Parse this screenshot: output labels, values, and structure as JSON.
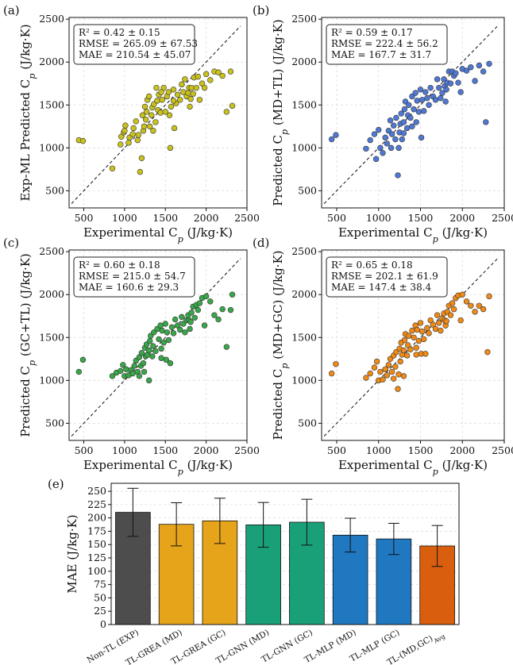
{
  "chart_data": [
    {
      "panel": "(a)",
      "type": "scatter",
      "xlabel": "Experimental C",
      "xlabel_sub": "p",
      "xlabel_unit": " (J/kg·K)",
      "ylabel": "Exp-ML Predicted C",
      "ylabel_sub": "p",
      "ylabel_unit": " (J/kg·K)",
      "xlim": [
        320,
        2500
      ],
      "ylim": [
        300,
        2520
      ],
      "xticks": [
        500,
        1000,
        1500,
        2000,
        2500
      ],
      "yticks": [
        500,
        1000,
        1500,
        2000,
        2500
      ],
      "color": "#c9c21d",
      "stats": [
        "R² = 0.42 ± 0.15",
        "RMSE = 265.09 ± 67.53",
        "MAE = 210.54 ± 45.07"
      ],
      "diagonal": [
        350,
        2420
      ],
      "points": [
        [
          440,
          1090
        ],
        [
          490,
          1080
        ],
        [
          850,
          760
        ],
        [
          950,
          1040
        ],
        [
          960,
          1130
        ],
        [
          990,
          1180
        ],
        [
          1000,
          1200
        ],
        [
          1010,
          1260
        ],
        [
          1050,
          1060
        ],
        [
          1060,
          1120
        ],
        [
          1100,
          1160
        ],
        [
          1110,
          1230
        ],
        [
          1140,
          1310
        ],
        [
          1160,
          1090
        ],
        [
          1170,
          1150
        ],
        [
          1190,
          720
        ],
        [
          1210,
          880
        ],
        [
          1220,
          1380
        ],
        [
          1230,
          1200
        ],
        [
          1240,
          1250
        ],
        [
          1250,
          1480
        ],
        [
          1260,
          1330
        ],
        [
          1270,
          1420
        ],
        [
          1280,
          1560
        ],
        [
          1300,
          1600
        ],
        [
          1310,
          1250
        ],
        [
          1330,
          1380
        ],
        [
          1340,
          1470
        ],
        [
          1350,
          1200
        ],
        [
          1360,
          1510
        ],
        [
          1380,
          1300
        ],
        [
          1400,
          1550
        ],
        [
          1410,
          1440
        ],
        [
          1420,
          1620
        ],
        [
          1440,
          1410
        ],
        [
          1460,
          1560
        ],
        [
          1480,
          1700
        ],
        [
          1500,
          1420
        ],
        [
          1520,
          1600
        ],
        [
          1540,
          1650
        ],
        [
          1560,
          1000
        ],
        [
          1570,
          1480
        ],
        [
          1600,
          1680
        ],
        [
          1610,
          1230
        ],
        [
          1630,
          1520
        ],
        [
          1650,
          1620
        ],
        [
          1680,
          1560
        ],
        [
          1700,
          1740
        ],
        [
          1720,
          1650
        ],
        [
          1740,
          1800
        ],
        [
          1760,
          1600
        ],
        [
          1780,
          1640
        ],
        [
          1790,
          1700
        ],
        [
          1800,
          1480
        ],
        [
          1810,
          1570
        ],
        [
          1820,
          1700
        ],
        [
          1840,
          1630
        ],
        [
          1850,
          1820
        ],
        [
          1880,
          1700
        ],
        [
          1900,
          1830
        ],
        [
          1920,
          1560
        ],
        [
          1950,
          1750
        ],
        [
          1980,
          1700
        ],
        [
          2000,
          1860
        ],
        [
          2050,
          1790
        ],
        [
          2100,
          1890
        ],
        [
          2150,
          1880
        ],
        [
          2200,
          1840
        ],
        [
          2250,
          1420
        ],
        [
          2300,
          1890
        ],
        [
          2320,
          1490
        ],
        [
          1550,
          1380
        ],
        [
          1450,
          1650
        ],
        [
          1390,
          1700
        ],
        [
          1600,
          1550
        ]
      ]
    },
    {
      "panel": "(b)",
      "type": "scatter",
      "xlabel": "Experimental C",
      "xlabel_sub": "p",
      "xlabel_unit": " (J/kg·K)",
      "ylabel": "Predicted C",
      "ylabel_sub": "p",
      "ylabel_unit": " (MD+TL) (J/kg·K)",
      "xlim": [
        320,
        2500
      ],
      "ylim": [
        300,
        2520
      ],
      "xticks": [
        500,
        1000,
        1500,
        2000,
        2500
      ],
      "yticks": [
        500,
        1000,
        1500,
        2000,
        2500
      ],
      "color": "#4f78d4",
      "stats": [
        "R² = 0.59 ± 0.17",
        "RMSE = 222.4 ± 56.2",
        "MAE = 167.7 ± 31.7"
      ],
      "diagonal": [
        350,
        2420
      ],
      "points": [
        [
          440,
          1100
        ],
        [
          490,
          1150
        ],
        [
          850,
          990
        ],
        [
          900,
          1090
        ],
        [
          950,
          1160
        ],
        [
          970,
          870
        ],
        [
          1000,
          1210
        ],
        [
          1020,
          1000
        ],
        [
          1050,
          940
        ],
        [
          1080,
          1120
        ],
        [
          1100,
          1050
        ],
        [
          1120,
          1200
        ],
        [
          1140,
          1320
        ],
        [
          1160,
          1160
        ],
        [
          1180,
          1260
        ],
        [
          1200,
          1100
        ],
        [
          1210,
          1350
        ],
        [
          1230,
          680
        ],
        [
          1240,
          1000
        ],
        [
          1250,
          1180
        ],
        [
          1260,
          1280
        ],
        [
          1270,
          1400
        ],
        [
          1280,
          1100
        ],
        [
          1300,
          1300
        ],
        [
          1310,
          1450
        ],
        [
          1320,
          1540
        ],
        [
          1340,
          1230
        ],
        [
          1350,
          1380
        ],
        [
          1360,
          1500
        ],
        [
          1380,
          1350
        ],
        [
          1400,
          1600
        ],
        [
          1420,
          1450
        ],
        [
          1440,
          1640
        ],
        [
          1450,
          1300
        ],
        [
          1460,
          1550
        ],
        [
          1480,
          1420
        ],
        [
          1500,
          1680
        ],
        [
          1510,
          1120
        ],
        [
          1520,
          1560
        ],
        [
          1540,
          1430
        ],
        [
          1560,
          1650
        ],
        [
          1580,
          1580
        ],
        [
          1600,
          1500
        ],
        [
          1620,
          1700
        ],
        [
          1650,
          1600
        ],
        [
          1680,
          1560
        ],
        [
          1700,
          1800
        ],
        [
          1720,
          1700
        ],
        [
          1740,
          1580
        ],
        [
          1760,
          1640
        ],
        [
          1780,
          1800
        ],
        [
          1790,
          1720
        ],
        [
          1800,
          1540
        ],
        [
          1810,
          1680
        ],
        [
          1820,
          1760
        ],
        [
          1840,
          1890
        ],
        [
          1860,
          1750
        ],
        [
          1880,
          1890
        ],
        [
          1900,
          1840
        ],
        [
          1920,
          1870
        ],
        [
          1950,
          1760
        ],
        [
          1980,
          1650
        ],
        [
          2000,
          1920
        ],
        [
          2050,
          1900
        ],
        [
          2100,
          1940
        ],
        [
          2150,
          1780
        ],
        [
          2200,
          1960
        ],
        [
          2250,
          1890
        ],
        [
          2280,
          1300
        ],
        [
          2320,
          1980
        ],
        [
          1300,
          1170
        ],
        [
          1400,
          1250
        ],
        [
          1150,
          1000
        ]
      ]
    },
    {
      "panel": "(c)",
      "type": "scatter",
      "xlabel": "Experimental C",
      "xlabel_sub": "p",
      "xlabel_unit": " (J/kg·K)",
      "ylabel": "Predicted C",
      "ylabel_sub": "p",
      "ylabel_unit": " (GC+TL) (J/kg·K)",
      "xlim": [
        320,
        2500
      ],
      "ylim": [
        300,
        2520
      ],
      "xticks": [
        500,
        1000,
        1500,
        2000,
        2500
      ],
      "yticks": [
        500,
        1000,
        1500,
        2000,
        2500
      ],
      "color": "#3aa64a",
      "stats": [
        "R² = 0.60 ± 0.18",
        "RMSE = 215.0 ± 54.7",
        "MAE = 160.6 ± 29.3"
      ],
      "diagonal": [
        350,
        2420
      ],
      "points": [
        [
          440,
          1100
        ],
        [
          490,
          1240
        ],
        [
          850,
          1050
        ],
        [
          900,
          1090
        ],
        [
          950,
          1110
        ],
        [
          980,
          1180
        ],
        [
          1000,
          1050
        ],
        [
          1020,
          1130
        ],
        [
          1050,
          1060
        ],
        [
          1080,
          1120
        ],
        [
          1100,
          1080
        ],
        [
          1120,
          1170
        ],
        [
          1140,
          1230
        ],
        [
          1160,
          1100
        ],
        [
          1180,
          1270
        ],
        [
          1200,
          1170
        ],
        [
          1210,
          1320
        ],
        [
          1230,
          1200
        ],
        [
          1240,
          1100
        ],
        [
          1250,
          1380
        ],
        [
          1260,
          1280
        ],
        [
          1270,
          1420
        ],
        [
          1280,
          1300
        ],
        [
          1300,
          1350
        ],
        [
          1310,
          1460
        ],
        [
          1320,
          1520
        ],
        [
          1340,
          1280
        ],
        [
          1350,
          1400
        ],
        [
          1360,
          1560
        ],
        [
          1380,
          1340
        ],
        [
          1400,
          1600
        ],
        [
          1420,
          1480
        ],
        [
          1440,
          1640
        ],
        [
          1450,
          1370
        ],
        [
          1460,
          1580
        ],
        [
          1480,
          1440
        ],
        [
          1500,
          1660
        ],
        [
          1510,
          1240
        ],
        [
          1520,
          1560
        ],
        [
          1540,
          1470
        ],
        [
          1560,
          1200
        ],
        [
          1580,
          1620
        ],
        [
          1600,
          1550
        ],
        [
          1620,
          1710
        ],
        [
          1650,
          1640
        ],
        [
          1680,
          1590
        ],
        [
          1700,
          1740
        ],
        [
          1720,
          1660
        ],
        [
          1740,
          1560
        ],
        [
          1760,
          1700
        ],
        [
          1780,
          1760
        ],
        [
          1790,
          1700
        ],
        [
          1800,
          1600
        ],
        [
          1810,
          1680
        ],
        [
          1820,
          1790
        ],
        [
          1840,
          1860
        ],
        [
          1860,
          1730
        ],
        [
          1880,
          1880
        ],
        [
          1900,
          1820
        ],
        [
          1920,
          1900
        ],
        [
          1950,
          1960
        ],
        [
          1980,
          1640
        ],
        [
          2000,
          1980
        ],
        [
          2050,
          1920
        ],
        [
          2100,
          1760
        ],
        [
          2150,
          1710
        ],
        [
          2200,
          1830
        ],
        [
          2250,
          1390
        ],
        [
          2300,
          1820
        ],
        [
          2320,
          2000
        ],
        [
          1300,
          1000
        ],
        [
          1180,
          1050
        ],
        [
          1450,
          1260
        ]
      ]
    },
    {
      "panel": "(d)",
      "type": "scatter",
      "xlabel": "Experimental C",
      "xlabel_sub": "p",
      "xlabel_unit": " (J/kg·K)",
      "ylabel": "Predicted C",
      "ylabel_sub": "p",
      "ylabel_unit": " (MD+GC) (J/kg·K)",
      "xlim": [
        320,
        2500
      ],
      "ylim": [
        300,
        2520
      ],
      "xticks": [
        500,
        1000,
        1500,
        2000,
        2500
      ],
      "yticks": [
        500,
        1000,
        1500,
        2000,
        2500
      ],
      "color": "#f08a17",
      "stats": [
        "R² = 0.65 ± 0.18",
        "RMSE = 202.1 ± 61.9",
        "MAE = 147.4 ± 38.4"
      ],
      "diagonal": [
        350,
        2420
      ],
      "points": [
        [
          440,
          1080
        ],
        [
          490,
          1190
        ],
        [
          850,
          1030
        ],
        [
          900,
          1080
        ],
        [
          950,
          1150
        ],
        [
          980,
          1220
        ],
        [
          1000,
          1000
        ],
        [
          1020,
          1100
        ],
        [
          1050,
          1010
        ],
        [
          1080,
          1130
        ],
        [
          1100,
          1060
        ],
        [
          1120,
          1180
        ],
        [
          1140,
          1250
        ],
        [
          1160,
          1100
        ],
        [
          1180,
          1290
        ],
        [
          1200,
          1160
        ],
        [
          1210,
          1330
        ],
        [
          1230,
          900
        ],
        [
          1240,
          1070
        ],
        [
          1250,
          1370
        ],
        [
          1260,
          1220
        ],
        [
          1270,
          1440
        ],
        [
          1280,
          1300
        ],
        [
          1300,
          1350
        ],
        [
          1310,
          1470
        ],
        [
          1320,
          1540
        ],
        [
          1340,
          1290
        ],
        [
          1350,
          1410
        ],
        [
          1360,
          1520
        ],
        [
          1380,
          1360
        ],
        [
          1400,
          1580
        ],
        [
          1420,
          1500
        ],
        [
          1440,
          1640
        ],
        [
          1450,
          1380
        ],
        [
          1460,
          1590
        ],
        [
          1480,
          1460
        ],
        [
          1500,
          1670
        ],
        [
          1510,
          1310
        ],
        [
          1520,
          1570
        ],
        [
          1540,
          1480
        ],
        [
          1560,
          1310
        ],
        [
          1580,
          1610
        ],
        [
          1600,
          1550
        ],
        [
          1620,
          1700
        ],
        [
          1650,
          1650
        ],
        [
          1680,
          1600
        ],
        [
          1700,
          1760
        ],
        [
          1720,
          1670
        ],
        [
          1740,
          1580
        ],
        [
          1760,
          1720
        ],
        [
          1780,
          1780
        ],
        [
          1790,
          1700
        ],
        [
          1800,
          1640
        ],
        [
          1810,
          1690
        ],
        [
          1820,
          1800
        ],
        [
          1840,
          1870
        ],
        [
          1860,
          1760
        ],
        [
          1880,
          1900
        ],
        [
          1900,
          1830
        ],
        [
          1920,
          1960
        ],
        [
          1950,
          1990
        ],
        [
          1980,
          1700
        ],
        [
          2000,
          2000
        ],
        [
          2050,
          1920
        ],
        [
          2100,
          1870
        ],
        [
          2150,
          1800
        ],
        [
          2200,
          1870
        ],
        [
          2250,
          1830
        ],
        [
          2300,
          1330
        ],
        [
          2320,
          1980
        ],
        [
          1300,
          1050
        ],
        [
          1180,
          1020
        ],
        [
          1450,
          1300
        ]
      ]
    },
    {
      "panel": "(e)",
      "type": "bar",
      "ylabel": "MAE (J/kg·K)",
      "ylim": [
        0,
        265
      ],
      "yticks": [
        0,
        25,
        50,
        75,
        100,
        125,
        150,
        175,
        200,
        225,
        250
      ],
      "categories": [
        "Non-TL (EXP)",
        "TL-GREA (MD)",
        "TL-GREA (GC)",
        "TL-GNN (MD)",
        "TL-GNN (GC)",
        "TL-MLP (MD)",
        "TL-MLP (GC)",
        "TL-(MD,GC)"
      ],
      "last_category_subscript": "Avg",
      "values": [
        210.5,
        188,
        194.5,
        187,
        192,
        167.7,
        160.6,
        147.4
      ],
      "errors": [
        45.1,
        40.5,
        42.5,
        42,
        43,
        31.7,
        29.3,
        38.4
      ],
      "colors": [
        "#4d4d4d",
        "#e6a41a",
        "#e6a41a",
        "#1aa079",
        "#1aa079",
        "#1f78c0",
        "#1f78c0",
        "#d95f0e"
      ]
    }
  ]
}
